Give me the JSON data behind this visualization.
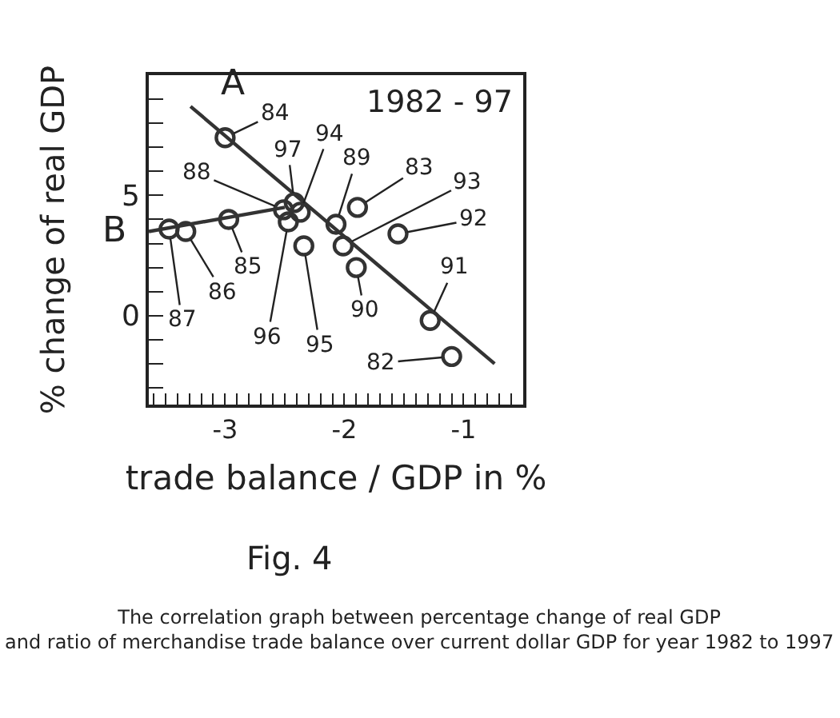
{
  "chart_data": {
    "type": "scatter",
    "xlabel": "trade balance / GDP in %",
    "ylabel": "% change of real GDP",
    "annotations": [
      "1982 - 97",
      "Fig. 4",
      "The correlation graph between percentage change of real GDP\nand ratio of merchandise trade balance over current dollar GDP for year 1982 to 1997",
      {
        "text": "82",
        "x": -1.1,
        "y": -1.7
      },
      {
        "text": "83",
        "x": -1.89,
        "y": 4.5
      },
      {
        "text": "84",
        "x": -3.0,
        "y": 7.4
      },
      {
        "text": "85",
        "x": -2.97,
        "y": 4.0
      },
      {
        "text": "86",
        "x": -3.33,
        "y": 3.5
      },
      {
        "text": "87",
        "x": -3.47,
        "y": 3.6
      },
      {
        "text": "88",
        "x": -2.51,
        "y": 4.4
      },
      {
        "text": "89",
        "x": -2.07,
        "y": 3.8
      },
      {
        "text": "90",
        "x": -1.9,
        "y": 2.0
      },
      {
        "text": "91",
        "x": -1.28,
        "y": -0.2
      },
      {
        "text": "92",
        "x": -1.55,
        "y": 3.4
      },
      {
        "text": "93",
        "x": -2.01,
        "y": 2.9
      },
      {
        "text": "94",
        "x": -2.37,
        "y": 4.3
      },
      {
        "text": "95",
        "x": -2.34,
        "y": 2.9
      },
      {
        "text": "96",
        "x": -2.47,
        "y": 3.9
      },
      {
        "text": "97",
        "x": -2.42,
        "y": 4.7
      }
    ],
    "xlim": [
      -3.64,
      -0.5
    ],
    "ylim": [
      -3.7,
      10
    ],
    "xticks": [
      {
        "value": -3.6,
        "label": null
      },
      {
        "value": -3.5,
        "label": null
      },
      {
        "value": -3.4,
        "label": null
      },
      {
        "value": -3.3,
        "label": null
      },
      {
        "value": -3.2,
        "label": null
      },
      {
        "value": -3.1,
        "label": null
      },
      -3,
      {
        "value": -2.9,
        "label": null
      },
      {
        "value": -2.8,
        "label": null
      },
      {
        "value": -2.7,
        "label": null
      },
      {
        "value": -2.6,
        "label": null
      },
      {
        "value": -2.5,
        "label": null
      },
      {
        "value": -2.4,
        "label": null
      },
      {
        "value": -2.3,
        "label": null
      },
      {
        "value": -2.2,
        "label": null
      },
      {
        "value": -2.1,
        "label": null
      },
      -2,
      {
        "value": -1.9,
        "label": null
      },
      {
        "value": -1.8,
        "label": null
      },
      {
        "value": -1.7,
        "label": null
      },
      {
        "value": -1.6,
        "label": null
      },
      {
        "value": -1.5,
        "label": null
      },
      {
        "value": -1.4,
        "label": null
      },
      {
        "value": -1.3,
        "label": null
      },
      {
        "value": -1.2,
        "label": null
      },
      {
        "value": -1.1,
        "label": null
      },
      -1,
      {
        "value": -0.9,
        "label": null
      },
      {
        "value": -0.8,
        "label": null
      },
      {
        "value": -0.7,
        "label": null
      },
      {
        "value": -0.6,
        "label": null
      }
    ],
    "yticks": [
      {
        "value": -3,
        "label": null
      },
      {
        "value": -2,
        "label": null
      },
      {
        "value": -1,
        "label": null
      },
      0,
      {
        "value": 1,
        "label": null
      },
      {
        "value": 2,
        "label": null
      },
      {
        "value": 3,
        "label": null
      },
      {
        "value": 4,
        "label": null
      },
      5,
      {
        "value": 6,
        "label": null
      },
      {
        "value": 7,
        "label": null
      },
      {
        "value": 8,
        "label": null
      },
      {
        "value": 9,
        "label": null
      }
    ],
    "marker": "circle",
    "series": [
      {
        "color": "#333333",
        "x": [
          -1.1,
          -1.89,
          -3.0,
          -2.97,
          -3.33,
          -3.47,
          -2.51,
          -2.07,
          -1.9,
          -1.28,
          -1.55,
          -2.01,
          -2.37,
          -2.34,
          -2.47,
          -2.42
        ],
        "values": [
          -1.7,
          4.5,
          7.4,
          4.0,
          3.5,
          3.6,
          4.4,
          3.8,
          2.0,
          -0.2,
          3.4,
          2.9,
          4.3,
          2.9,
          3.9,
          4.7
        ]
      },
      {
        "type": "line",
        "name": "A",
        "color": "#333333",
        "x": [
          -3.29,
          -0.74
        ],
        "values": [
          8.7,
          -2.0
        ],
        "marker": "none"
      },
      {
        "type": "line",
        "name": "B",
        "color": "#333333",
        "x": [
          -3.64,
          -2.5
        ],
        "values": [
          3.5,
          4.5
        ],
        "marker": "none"
      }
    ]
  }
}
